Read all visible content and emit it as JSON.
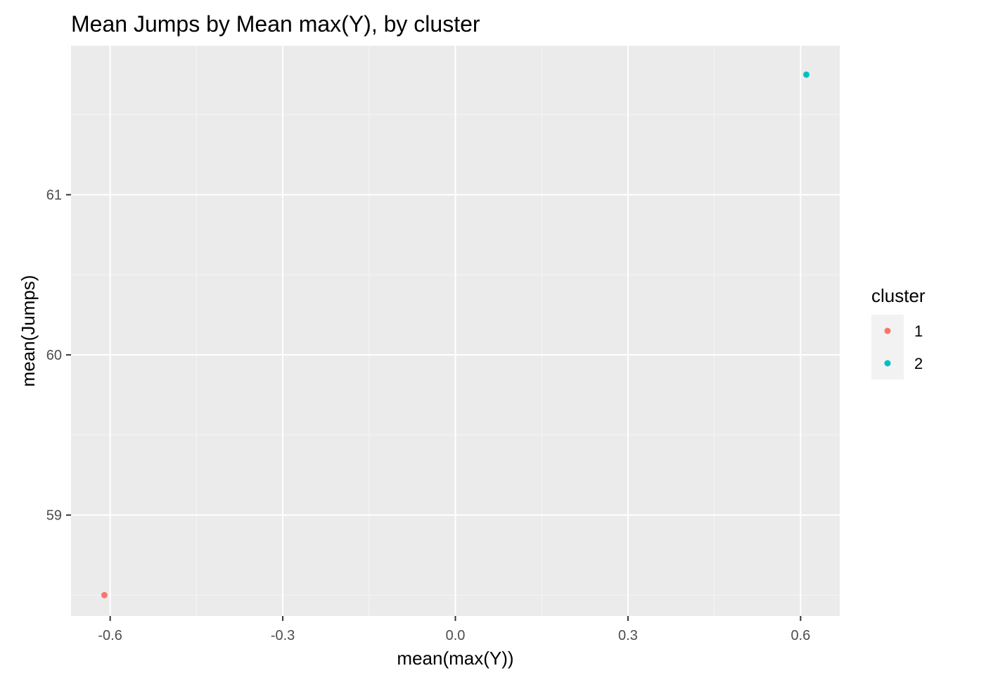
{
  "chart_data": {
    "type": "scatter",
    "title": "Mean Jumps by Mean max(Y), by cluster",
    "xlabel": "mean(max(Y))",
    "ylabel": "mean(Jumps)",
    "xlim": [
      -0.668,
      0.668
    ],
    "ylim": [
      58.37,
      61.93
    ],
    "xticks": [
      -0.6,
      -0.3,
      0.0,
      0.3,
      0.6
    ],
    "xtick_labels": [
      "-0.6",
      "-0.3",
      "0.0",
      "0.3",
      "0.6"
    ],
    "yticks": [
      59,
      60,
      61
    ],
    "ytick_labels": [
      "59",
      "60",
      "61"
    ],
    "grid": true,
    "legend": {
      "title": "cluster",
      "position": "right",
      "entries": [
        {
          "label": "1",
          "color": "#F8766D"
        },
        {
          "label": "2",
          "color": "#00BFC4"
        }
      ]
    },
    "series": [
      {
        "name": "1",
        "color": "#F8766D",
        "points": [
          {
            "x": -0.61,
            "y": 58.5
          }
        ]
      },
      {
        "name": "2",
        "color": "#00BFC4",
        "points": [
          {
            "x": 0.61,
            "y": 61.75
          }
        ]
      }
    ]
  },
  "colors": {
    "panel_background": "#EBEBEB",
    "grid_major": "#FFFFFF",
    "grid_minor": "#F5F5F5",
    "tick_mark": "#333333",
    "legend_key_background": "#F2F2F2"
  }
}
